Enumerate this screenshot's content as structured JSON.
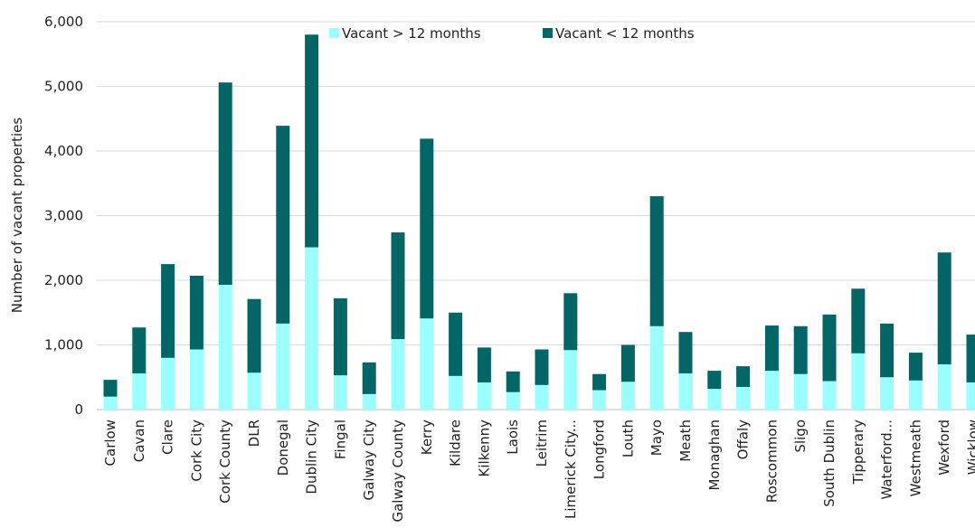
{
  "chart_data": {
    "type": "bar",
    "stacked": true,
    "title": "",
    "xlabel": "",
    "ylabel": "Number of vacant properties",
    "ylim": [
      0,
      6000
    ],
    "yticks": [
      "0",
      "1,000",
      "2,000",
      "3,000",
      "4,000",
      "5,000",
      "6,000"
    ],
    "grid": "horizontal",
    "legend_position": "top",
    "categories": [
      "Carlow",
      "Cavan",
      "Clare",
      "Cork City",
      "Cork County",
      "DLR",
      "Donegal",
      "Dublin City",
      "Fingal",
      "Galway City",
      "Galway County",
      "Kerry",
      "Kildare",
      "Kilkenny",
      "Laois",
      "Leitrim",
      "Limerick City...",
      "Longford",
      "Louth",
      "Mayo",
      "Meath",
      "Monaghan",
      "Offaly",
      "Roscommon",
      "Sligo",
      "South Dublin",
      "Tipperary",
      "Waterford...",
      "Westmeath",
      "Wexford",
      "Wicklow"
    ],
    "series": [
      {
        "name": "Vacant > 12 months",
        "color": "#99ffff",
        "values": [
          200,
          560,
          800,
          930,
          1930,
          570,
          1330,
          2510,
          530,
          240,
          1090,
          1410,
          520,
          420,
          270,
          380,
          920,
          300,
          430,
          1290,
          560,
          320,
          350,
          600,
          550,
          440,
          870,
          500,
          450,
          700,
          420
        ]
      },
      {
        "name": "Vacant < 12 months",
        "color": "#006666",
        "values": [
          260,
          710,
          1450,
          1140,
          3130,
          1140,
          3060,
          3290,
          1190,
          490,
          1650,
          2780,
          980,
          540,
          320,
          550,
          880,
          250,
          570,
          2010,
          640,
          280,
          320,
          700,
          740,
          1030,
          1000,
          830,
          430,
          1730,
          740
        ]
      }
    ]
  }
}
